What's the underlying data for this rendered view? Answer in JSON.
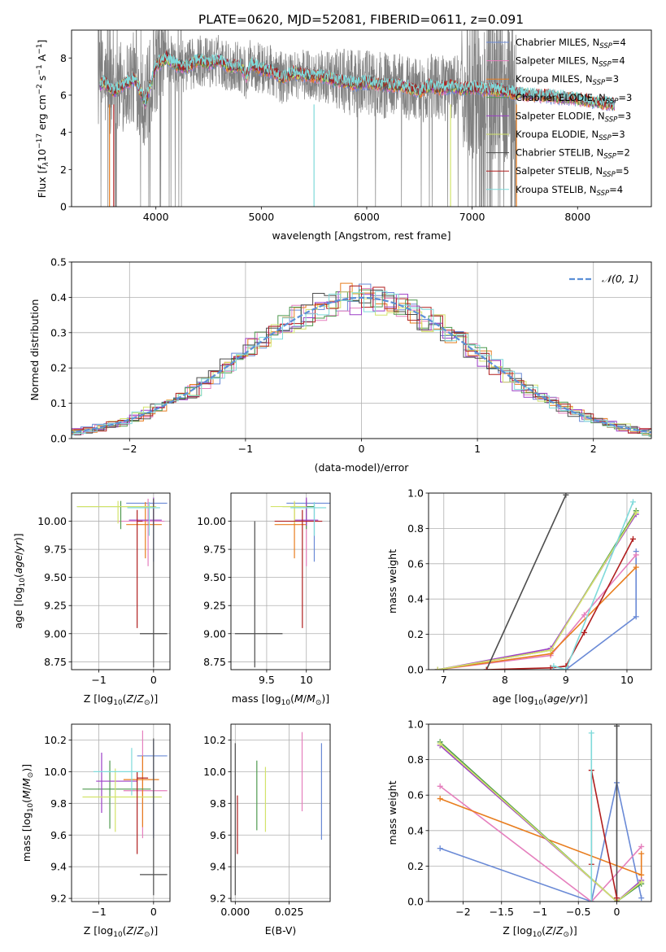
{
  "figure_title": "PLATE=0620, MJD=52081, FIBERID=0611, z=0.091",
  "colors": {
    "Chabrier MILES": "#6a8ad6",
    "Salpeter MILES": "#e57fbd",
    "Kroupa MILES": "#e87d1e",
    "Chabrier ELODIE": "#4f9a4f",
    "Salpeter ELODIE": "#9c3fc6",
    "Kroupa ELODIE": "#d2e36a",
    "Chabrier STELIB": "#4d4d4d",
    "Salpeter STELIB": "#b01e1e",
    "Kroupa STELIB": "#7fdada",
    "data": "#808080",
    "normal": "#5b8fd6"
  },
  "chart_data": [
    {
      "type": "line",
      "panel": "spectrum",
      "title": "PLATE=0620, MJD=52081, FIBERID=0611, z=0.091",
      "xlabel": "wavelength [Angstrom, rest frame]",
      "ylabel": "Flux [fλ10⁻¹⁷ erg cm⁻² s⁻¹ A⁻¹]",
      "xlim": [
        3200,
        8700
      ],
      "ylim": [
        0,
        9.5
      ],
      "xticks": [
        4000,
        5000,
        6000,
        7000,
        8000
      ],
      "yticks": [
        0,
        2,
        4,
        6,
        8
      ],
      "grid": false,
      "legend_position": "upper right",
      "legend": [
        "Chabrier MILES, N_SSP=4",
        "Salpeter MILES, N_SSP=4",
        "Kroupa MILES, N_SSP=3",
        "Chabrier ELODIE, N_SSP=3",
        "Salpeter ELODIE, N_SSP=3",
        "Kroupa ELODIE, N_SSP=3",
        "Chabrier STELIB, N_SSP=2",
        "Salpeter STELIB, N_SSP=5",
        "Kroupa STELIB, N_SSP=4"
      ],
      "legend_items": [
        {
          "pre": "Chabrier MILES, N",
          "sub": "SSP",
          "post": "=4"
        },
        {
          "pre": "Salpeter MILES, N",
          "sub": "SSP",
          "post": "=4"
        },
        {
          "pre": "Kroupa MILES, N",
          "sub": "SSP",
          "post": "=3"
        },
        {
          "pre": "Chabrier ELODIE, N",
          "sub": "SSP",
          "post": "=3"
        },
        {
          "pre": "Salpeter ELODIE, N",
          "sub": "SSP",
          "post": "=3"
        },
        {
          "pre": "Kroupa ELODIE, N",
          "sub": "SSP",
          "post": "=3"
        },
        {
          "pre": "Chabrier STELIB, N",
          "sub": "SSP",
          "post": "=2"
        },
        {
          "pre": "Salpeter STELIB, N",
          "sub": "SSP",
          "post": "=5"
        },
        {
          "pre": "Kroupa STELIB, N",
          "sub": "SSP",
          "post": "=4"
        }
      ],
      "model_continuum": {
        "x": [
          3450,
          3500,
          3600,
          3700,
          3800,
          3900,
          4000,
          4100,
          4200,
          4300,
          4400,
          4500,
          4600,
          4700,
          4800,
          4860,
          4900,
          5000,
          5100,
          5200,
          5300,
          5400,
          5500,
          5600,
          5700,
          5800,
          5900,
          6000,
          6100,
          6200,
          6300,
          6400,
          6500,
          6600,
          6700,
          6800,
          6900,
          7000,
          7100,
          7200,
          7300,
          7400,
          7600,
          7800,
          8000,
          8200,
          8350
        ],
        "y": [
          6.4,
          6.7,
          6.2,
          6.6,
          6.9,
          5.6,
          7.6,
          8.0,
          7.6,
          7.5,
          7.9,
          7.7,
          7.9,
          7.5,
          7.6,
          7.0,
          7.7,
          7.4,
          7.3,
          6.9,
          7.2,
          7.1,
          7.0,
          7.0,
          6.8,
          6.7,
          6.6,
          6.7,
          6.6,
          6.5,
          6.5,
          6.4,
          6.2,
          6.5,
          6.3,
          6.5,
          6.3,
          6.4,
          6.3,
          6.3,
          6.2,
          6.1,
          6.0,
          5.9,
          5.8,
          5.6,
          5.5
        ]
      },
      "data_spectrum": {
        "x_range": [
          3450,
          7420
        ],
        "y_range": [
          0,
          9.5
        ],
        "note": "noisy observed spectrum, grey"
      }
    },
    {
      "type": "histogram",
      "panel": "residuals",
      "xlabel": "(data-model)/error",
      "ylabel": "Normed distribution",
      "xlim": [
        -2.5,
        2.5
      ],
      "ylim": [
        0,
        0.5
      ],
      "xticks": [
        -2,
        -1,
        0,
        1,
        2
      ],
      "yticks": [
        0.0,
        0.1,
        0.2,
        0.3,
        0.4,
        0.5
      ],
      "grid": true,
      "legend": [
        "𝒩(0, 1)"
      ],
      "legend_position": "upper right",
      "bin_width": 0.1
    },
    {
      "type": "errorbar",
      "panel": "age-vs-Z",
      "xlabel": "Z [log10(Z/Z⊙)]",
      "ylabel": "age [log10(age/yr)]",
      "xlim": [
        -1.5,
        0.3
      ],
      "ylim": [
        8.68,
        10.25
      ],
      "xticks": [
        -1,
        0
      ],
      "yticks": [
        8.75,
        9.0,
        9.25,
        9.5,
        9.75,
        10.0
      ],
      "points": [
        {
          "model": "Chabrier MILES",
          "x": 0.0,
          "xerr": [
            0.5,
            0.25
          ],
          "y": 10.16,
          "yerr": [
            0.52,
            0.0
          ]
        },
        {
          "model": "Salpeter MILES",
          "x": -0.1,
          "xerr": [
            0.55,
            0.3
          ],
          "y": 10.0,
          "yerr": [
            0.4,
            0.2
          ]
        },
        {
          "model": "Kroupa MILES",
          "x": -0.15,
          "xerr": [
            0.35,
            0.3
          ],
          "y": 9.97,
          "yerr": [
            0.3,
            0.2
          ]
        },
        {
          "model": "Chabrier ELODIE",
          "x": -0.6,
          "xerr": [
            0.8,
            0.6
          ],
          "y": 10.13,
          "yerr": [
            0.2,
            0.05
          ]
        },
        {
          "model": "Salpeter ELODIE",
          "x": 0.0,
          "xerr": [
            0.45,
            0.15
          ],
          "y": 10.01,
          "yerr": [
            0.05,
            0.2
          ]
        },
        {
          "model": "Kroupa ELODIE",
          "x": -0.65,
          "xerr": [
            0.75,
            0.7
          ],
          "y": 10.13,
          "yerr": [
            0.15,
            0.05
          ]
        },
        {
          "model": "Chabrier STELIB",
          "x": 0.0,
          "xerr": [
            0.25,
            0.25
          ],
          "y": 9.0,
          "yerr": [
            0.3,
            1.2
          ]
        },
        {
          "model": "Salpeter STELIB",
          "x": -0.3,
          "xerr": [
            0.0,
            0.1
          ],
          "y": 10.0,
          "yerr": [
            0.95,
            0.1
          ]
        },
        {
          "model": "Kroupa STELIB",
          "x": -0.08,
          "xerr": [
            0.4,
            0.2
          ],
          "y": 10.12,
          "yerr": [
            0.25,
            0.05
          ]
        }
      ]
    },
    {
      "type": "errorbar",
      "panel": "age-vs-mass",
      "xlabel": "mass [log10(M/M⊙)]",
      "ylabel": "",
      "xlim": [
        9.05,
        10.3
      ],
      "ylim": [
        8.68,
        10.25
      ],
      "xticks": [
        9.5,
        10.0
      ],
      "yticks": [
        8.75,
        9.0,
        9.25,
        9.5,
        9.75,
        10.0
      ],
      "points": [
        {
          "model": "Chabrier MILES",
          "x": 10.1,
          "xerr": [
            0.35,
            0.2
          ],
          "y": 10.16,
          "yerr": [
            0.52,
            0.0
          ]
        },
        {
          "model": "Salpeter MILES",
          "x": 10.0,
          "xerr": [
            0.2,
            0.2
          ],
          "y": 10.0,
          "yerr": [
            0.4,
            0.2
          ]
        },
        {
          "model": "Kroupa MILES",
          "x": 9.85,
          "xerr": [
            0.25,
            0.15
          ],
          "y": 9.97,
          "yerr": [
            0.3,
            0.2
          ]
        },
        {
          "model": "Chabrier ELODIE",
          "x": 10.0,
          "xerr": [
            0.3,
            0.1
          ],
          "y": 10.13,
          "yerr": [
            0.2,
            0.05
          ]
        },
        {
          "model": "Salpeter ELODIE",
          "x": 10.0,
          "xerr": [
            0.15,
            0.15
          ],
          "y": 10.01,
          "yerr": [
            0.05,
            0.2
          ]
        },
        {
          "model": "Kroupa ELODIE",
          "x": 9.85,
          "xerr": [
            0.3,
            0.15
          ],
          "y": 10.13,
          "yerr": [
            0.15,
            0.05
          ]
        },
        {
          "model": "Chabrier STELIB",
          "x": 9.35,
          "xerr": [
            0.25,
            0.35
          ],
          "y": 9.0,
          "yerr": [
            0.3,
            1.0
          ]
        },
        {
          "model": "Salpeter STELIB",
          "x": 9.95,
          "xerr": [
            0.35,
            0.25
          ],
          "y": 10.0,
          "yerr": [
            0.95,
            0.1
          ]
        },
        {
          "model": "Kroupa STELIB",
          "x": 10.1,
          "xerr": [
            0.3,
            0.15
          ],
          "y": 10.12,
          "yerr": [
            0.25,
            0.05
          ]
        }
      ]
    },
    {
      "type": "line",
      "panel": "weight-vs-age",
      "xlabel": "age [log10(age/yr)]",
      "ylabel": "mass weight",
      "xlim": [
        6.75,
        10.4
      ],
      "ylim": [
        0,
        1.0
      ],
      "xticks": [
        7,
        8,
        9,
        10
      ],
      "yticks": [
        0.0,
        0.2,
        0.4,
        0.6,
        0.8,
        1.0
      ],
      "grid": true,
      "series": [
        {
          "model": "Chabrier MILES",
          "x": [
            8.8,
            9.0,
            10.15,
            10.15
          ],
          "y": [
            0.0,
            0.0,
            0.3,
            0.67
          ]
        },
        {
          "model": "Salpeter MILES",
          "x": [
            6.9,
            8.75,
            9.3,
            10.15
          ],
          "y": [
            0.0,
            0.08,
            0.31,
            0.65
          ]
        },
        {
          "model": "Kroupa MILES",
          "x": [
            6.9,
            8.75,
            10.15
          ],
          "y": [
            0.0,
            0.09,
            0.58
          ]
        },
        {
          "model": "Chabrier ELODIE",
          "x": [
            6.9,
            8.75,
            10.15
          ],
          "y": [
            0.0,
            0.11,
            0.9
          ]
        },
        {
          "model": "Salpeter ELODIE",
          "x": [
            6.9,
            8.75,
            10.15
          ],
          "y": [
            0.0,
            0.12,
            0.88
          ]
        },
        {
          "model": "Kroupa ELODIE",
          "x": [
            6.9,
            8.75,
            10.15
          ],
          "y": [
            0.0,
            0.11,
            0.89
          ]
        },
        {
          "model": "Chabrier STELIB",
          "x": [
            7.7,
            9.0
          ],
          "y": [
            0.0,
            0.99
          ]
        },
        {
          "model": "Salpeter STELIB",
          "x": [
            7.7,
            8.75,
            9.0,
            9.3,
            10.1
          ],
          "y": [
            0.0,
            0.01,
            0.02,
            0.21,
            0.74
          ]
        },
        {
          "model": "Kroupa STELIB",
          "x": [
            8.8,
            9.0,
            10.1
          ],
          "y": [
            0.02,
            0.0,
            0.95
          ]
        }
      ]
    },
    {
      "type": "errorbar",
      "panel": "mass-vs-Z",
      "xlabel": "Z [log10(Z/Z⊙)]",
      "ylabel": "mass [log10(M/M⊙)]",
      "xlim": [
        -1.5,
        0.3
      ],
      "ylim": [
        9.18,
        10.3
      ],
      "xticks": [
        -1,
        0
      ],
      "yticks": [
        9.2,
        9.4,
        9.6,
        9.8,
        10.0,
        10.2
      ],
      "points": [
        {
          "model": "Chabrier MILES",
          "x": 0.0,
          "xerr": [
            0.3,
            0.25
          ],
          "y": 10.1,
          "yerr": [
            0.52,
            0.1
          ]
        },
        {
          "model": "Salpeter MILES",
          "x": -0.2,
          "xerr": [
            0.35,
            0.45
          ],
          "y": 9.88,
          "yerr": [
            0.3,
            0.38
          ]
        },
        {
          "model": "Kroupa MILES",
          "x": -0.2,
          "xerr": [
            0.35,
            0.3
          ],
          "y": 9.95,
          "yerr": [
            0.3,
            0.15
          ]
        },
        {
          "model": "Chabrier ELODIE",
          "x": -0.8,
          "xerr": [
            0.5,
            0.75
          ],
          "y": 9.89,
          "yerr": [
            0.25,
            0.18
          ]
        },
        {
          "model": "Salpeter ELODIE",
          "x": -0.95,
          "xerr": [
            0.1,
            0.65
          ],
          "y": 9.94,
          "yerr": [
            0.2,
            0.18
          ]
        },
        {
          "model": "Kroupa ELODIE",
          "x": -0.7,
          "xerr": [
            0.6,
            0.85
          ],
          "y": 9.84,
          "yerr": [
            0.22,
            0.18
          ]
        },
        {
          "model": "Chabrier STELIB",
          "x": 0.0,
          "xerr": [
            0.25,
            0.25
          ],
          "y": 9.35,
          "yerr": [
            0.13,
            0.86
          ]
        },
        {
          "model": "Salpeter STELIB",
          "x": -0.3,
          "xerr": [
            0.0,
            0.2
          ],
          "y": 9.96,
          "yerr": [
            0.48,
            0.04
          ]
        },
        {
          "model": "Kroupa STELIB",
          "x": -0.4,
          "xerr": [
            0.7,
            0.2
          ],
          "y": 10.0,
          "yerr": [
            0.15,
            0.15
          ]
        }
      ]
    },
    {
      "type": "errorbar",
      "panel": "mass-vs-EBV",
      "xlabel": "E(B-V)",
      "ylabel": "",
      "xlim": [
        -0.002,
        0.044
      ],
      "ylim": [
        9.18,
        10.3
      ],
      "xticks": [
        0.0,
        0.025
      ],
      "xtick_labels": [
        "0.000",
        "0.025"
      ],
      "yticks": [
        9.2,
        9.4,
        9.6,
        9.8,
        10.0,
        10.2
      ],
      "points": [
        {
          "model": "Chabrier MILES",
          "x": 0.04,
          "y_low": 9.57,
          "y_high": 10.18
        },
        {
          "model": "Salpeter MILES",
          "x": 0.031,
          "y_low": 9.75,
          "y_high": 10.25
        },
        {
          "model": "Chabrier ELODIE",
          "x": 0.01,
          "y_low": 9.63,
          "y_high": 10.07
        },
        {
          "model": "Kroupa ELODIE",
          "x": 0.014,
          "y_low": 9.62,
          "y_high": 10.03
        },
        {
          "model": "Salpeter STELIB",
          "x": 0.001,
          "y_low": 9.48,
          "y_high": 9.85
        },
        {
          "model": "Chabrier STELIB",
          "x": 0.0,
          "y_low": 9.22,
          "y_high": 10.18
        }
      ]
    },
    {
      "type": "line",
      "panel": "weight-vs-Z",
      "xlabel": "Z [log10(Z/Z⊙)]",
      "ylabel": "mass weight",
      "xlim": [
        -2.45,
        0.45
      ],
      "ylim": [
        0,
        1.0
      ],
      "xticks": [
        -2.0,
        -1.5,
        -1.0,
        -0.5,
        0.0
      ],
      "yticks": [
        0.0,
        0.2,
        0.4,
        0.6,
        0.8,
        1.0
      ],
      "grid": true,
      "series": [
        {
          "model": "Chabrier MILES",
          "x": [
            -2.3,
            -0.33,
            0.0,
            0.32
          ],
          "y": [
            0.3,
            0.0,
            0.67,
            0.02
          ]
        },
        {
          "model": "Salpeter MILES",
          "x": [
            -2.3,
            -0.33,
            0.32
          ],
          "y": [
            0.65,
            0.0,
            0.31
          ]
        },
        {
          "model": "Kroupa MILES",
          "x": [
            -2.3,
            0.32,
            0.32
          ],
          "y": [
            0.58,
            0.15,
            0.27
          ]
        },
        {
          "model": "Chabrier ELODIE",
          "x": [
            -2.3,
            0.0,
            0.32
          ],
          "y": [
            0.9,
            0.0,
            0.1
          ]
        },
        {
          "model": "Salpeter ELODIE",
          "x": [
            -2.3,
            0.0,
            0.32
          ],
          "y": [
            0.88,
            0.0,
            0.12
          ]
        },
        {
          "model": "Kroupa ELODIE",
          "x": [
            -2.3,
            0.0,
            0.32
          ],
          "y": [
            0.89,
            0.0,
            0.11
          ]
        },
        {
          "model": "Chabrier STELIB",
          "x": [
            0.0,
            0.0
          ],
          "y": [
            0.0,
            0.99
          ]
        },
        {
          "model": "Salpeter STELIB",
          "x": [
            -0.33,
            -0.33,
            0.0
          ],
          "y": [
            0.21,
            0.74,
            0.02
          ]
        },
        {
          "model": "Kroupa STELIB",
          "x": [
            -0.33,
            -0.33
          ],
          "y": [
            0.0,
            0.95
          ]
        }
      ]
    }
  ]
}
